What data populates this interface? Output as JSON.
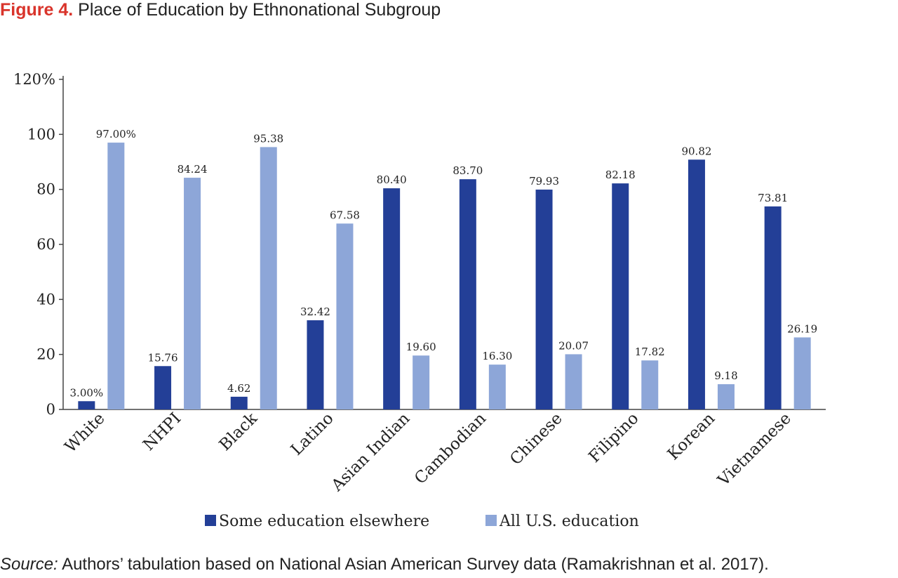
{
  "figure": {
    "label": "Figure 4.",
    "title": "Place of Education by Ethnonational Subgroup"
  },
  "source": {
    "label": "Source:",
    "text": "Authors’ tabulation based on National Asian American Survey data (Ramakrishnan et al. 2017)."
  },
  "chart_data": {
    "type": "bar",
    "title": "Place of Education by Ethnonational Subgroup",
    "xlabel": "",
    "ylabel": "",
    "ylim": [
      0,
      120
    ],
    "yticks": [
      {
        "value": 0,
        "label": "0"
      },
      {
        "value": 20,
        "label": "20"
      },
      {
        "value": 40,
        "label": "40"
      },
      {
        "value": 60,
        "label": "60"
      },
      {
        "value": 80,
        "label": "80"
      },
      {
        "value": 100,
        "label": "100"
      },
      {
        "value": 120,
        "label": "120%"
      }
    ],
    "grid": false,
    "legend_position": "bottom",
    "categories": [
      "White",
      "NHPI",
      "Black",
      "Latino",
      "Asian Indian",
      "Cambodian",
      "Chinese",
      "Filipino",
      "Korean",
      "Vietnamese"
    ],
    "series": [
      {
        "name": "Some education elsewhere",
        "color": "#233f97",
        "values": [
          3.0,
          15.76,
          4.62,
          32.42,
          80.4,
          83.7,
          79.93,
          82.18,
          90.82,
          73.81
        ],
        "labels": [
          "3.00%",
          "15.76",
          "4.62",
          "32.42",
          "80.40",
          "83.70",
          "79.93",
          "82.18",
          "90.82",
          "73.81"
        ]
      },
      {
        "name": "All U.S. education",
        "color": "#8da6d8",
        "values": [
          97.0,
          84.24,
          95.38,
          67.58,
          19.6,
          16.3,
          20.07,
          17.82,
          9.18,
          26.19
        ],
        "labels": [
          "97.00%",
          "84.24",
          "95.38",
          "67.58",
          "19.60",
          "16.30",
          "20.07",
          "17.82",
          "9.18",
          "26.19"
        ]
      }
    ]
  }
}
